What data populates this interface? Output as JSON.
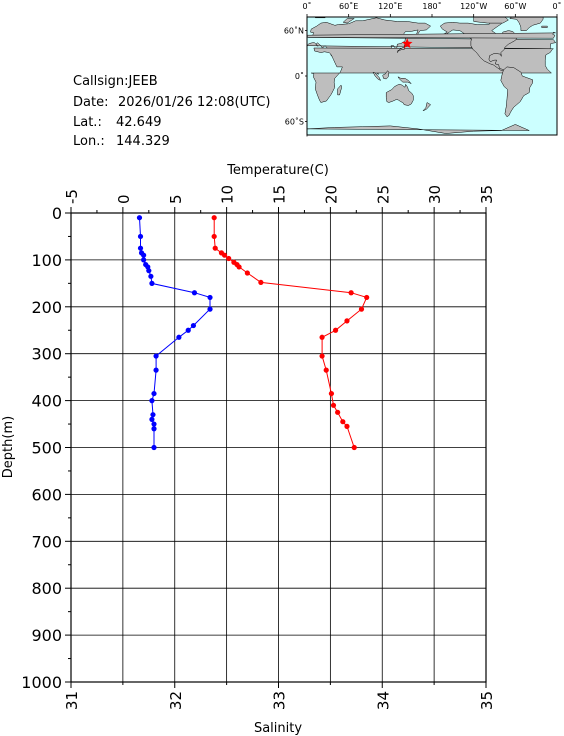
{
  "station": {
    "callsign_text": "Callsign:JEEB",
    "date_label": "Date:",
    "date_value": "2026/01/26 12:08(UTC)",
    "lat_label": "Lat.:",
    "lat_value": "42.649",
    "lon_label": "Lon.:",
    "lon_value": "144.329"
  },
  "map": {
    "lon_labels": [
      "0˚",
      "60˚E",
      "120˚E",
      "180˚",
      "120˚W",
      "60˚W",
      "0˚"
    ],
    "lat_labels": [
      "60˚N",
      "0˚",
      "60˚S"
    ],
    "marker_lat": 42.649,
    "marker_lon": 144.329,
    "ocean_color": "#ccffff",
    "land_color": "#bebebe",
    "marker_color": "#ff0000"
  },
  "chart_data": {
    "type": "line",
    "top_axis_label": "Temperature(C)",
    "bottom_axis_label": "Salinity",
    "left_axis_label": "Depth(m)",
    "temperature_ticks": [
      "-5",
      "0",
      "5",
      "10",
      "15",
      "20",
      "25",
      "30",
      "35"
    ],
    "salinity_ticks": [
      "31",
      "32",
      "33",
      "34",
      "35"
    ],
    "depth_ticks": [
      "0",
      "100",
      "200",
      "300",
      "400",
      "500",
      "600",
      "700",
      "800",
      "900",
      "1000"
    ],
    "temperature_range": [
      -5,
      35
    ],
    "salinity_range": [
      31,
      35
    ],
    "depth_range": [
      0,
      1000
    ],
    "grid": true,
    "series": [
      {
        "color": "#ff0000",
        "axis": "temperature",
        "points": [
          {
            "x": 8.8,
            "depth": 10
          },
          {
            "x": 8.8,
            "depth": 50
          },
          {
            "x": 8.9,
            "depth": 75
          },
          {
            "x": 9.5,
            "depth": 85
          },
          {
            "x": 9.8,
            "depth": 90
          },
          {
            "x": 10.2,
            "depth": 97
          },
          {
            "x": 10.7,
            "depth": 105
          },
          {
            "x": 11.0,
            "depth": 110
          },
          {
            "x": 11.2,
            "depth": 115
          },
          {
            "x": 12.0,
            "depth": 128
          },
          {
            "x": 13.3,
            "depth": 148
          },
          {
            "x": 22.0,
            "depth": 170
          },
          {
            "x": 23.5,
            "depth": 180
          },
          {
            "x": 23.0,
            "depth": 205
          },
          {
            "x": 21.6,
            "depth": 230
          },
          {
            "x": 20.5,
            "depth": 250
          },
          {
            "x": 19.2,
            "depth": 265
          },
          {
            "x": 19.2,
            "depth": 305
          },
          {
            "x": 19.6,
            "depth": 335
          },
          {
            "x": 20.1,
            "depth": 385
          },
          {
            "x": 20.3,
            "depth": 410
          },
          {
            "x": 20.7,
            "depth": 425
          },
          {
            "x": 21.2,
            "depth": 445
          },
          {
            "x": 21.6,
            "depth": 455
          },
          {
            "x": 22.3,
            "depth": 500
          }
        ]
      },
      {
        "color": "#0000ff",
        "axis": "salinity",
        "points": [
          {
            "x": 31.66,
            "depth": 10
          },
          {
            "x": 31.67,
            "depth": 50
          },
          {
            "x": 31.67,
            "depth": 75
          },
          {
            "x": 31.68,
            "depth": 85
          },
          {
            "x": 31.7,
            "depth": 90
          },
          {
            "x": 31.7,
            "depth": 100
          },
          {
            "x": 31.72,
            "depth": 110
          },
          {
            "x": 31.74,
            "depth": 115
          },
          {
            "x": 31.75,
            "depth": 123
          },
          {
            "x": 31.77,
            "depth": 135
          },
          {
            "x": 31.78,
            "depth": 150
          },
          {
            "x": 32.19,
            "depth": 170
          },
          {
            "x": 32.34,
            "depth": 180
          },
          {
            "x": 32.34,
            "depth": 205
          },
          {
            "x": 32.18,
            "depth": 240
          },
          {
            "x": 32.13,
            "depth": 250
          },
          {
            "x": 32.04,
            "depth": 265
          },
          {
            "x": 31.82,
            "depth": 305
          },
          {
            "x": 31.82,
            "depth": 335
          },
          {
            "x": 31.8,
            "depth": 385
          },
          {
            "x": 31.78,
            "depth": 400
          },
          {
            "x": 31.79,
            "depth": 430
          },
          {
            "x": 31.78,
            "depth": 440
          },
          {
            "x": 31.8,
            "depth": 450
          },
          {
            "x": 31.8,
            "depth": 460
          },
          {
            "x": 31.8,
            "depth": 500
          }
        ]
      }
    ]
  }
}
